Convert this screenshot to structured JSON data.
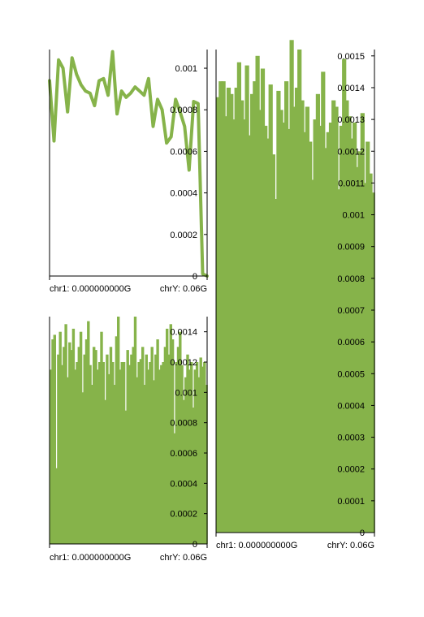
{
  "colors": {
    "series": "#86b34a",
    "axis": "#000000",
    "background": "#ffffff"
  },
  "chart_data": [
    {
      "type": "line",
      "title": "",
      "xlabel": "",
      "ylabel": "",
      "x_tick_labels": [
        "chr1: 0.000000000G",
        "chrY: 0.06G"
      ],
      "ylim": [
        0,
        0.00109
      ],
      "yticks": [
        0,
        0.0002,
        0.0004,
        0.0006,
        0.0008,
        0.001
      ],
      "ytick_labels": [
        "0",
        "0.0002",
        "0.0004",
        "0.0006",
        "0.0008",
        "0.001"
      ],
      "grid": false,
      "legend": "none",
      "values": [
        0.00094,
        0.00065,
        0.00104,
        0.001,
        0.00079,
        0.00105,
        0.00097,
        0.00092,
        0.00089,
        0.00088,
        0.00082,
        0.00094,
        0.00095,
        0.00087,
        0.00108,
        0.00078,
        0.00089,
        0.00086,
        0.00088,
        0.00091,
        0.00089,
        0.00087,
        0.00095,
        0.00072,
        0.00085,
        0.0008,
        0.00064,
        0.00067,
        0.00085,
        0.00079,
        0.00072,
        0.00051,
        0.00084,
        0.00083,
        1e-05,
        0.0
      ]
    },
    {
      "type": "bar",
      "title": "",
      "xlabel": "",
      "ylabel": "",
      "x_tick_labels": [
        "chr1: 0.000000000G",
        "chrY: 0.06G"
      ],
      "ylim": [
        0,
        0.0015
      ],
      "yticks": [
        0,
        0.0002,
        0.0004,
        0.0006,
        0.0008,
        0.001,
        0.0012,
        0.0014
      ],
      "ytick_labels": [
        "0",
        "0.0002",
        "0.0004",
        "0.0006",
        "0.0008",
        "0.001",
        "0.0012",
        "0.0014"
      ],
      "grid": false,
      "legend": "none",
      "values": [
        0.00115,
        0.00135,
        0.00138,
        0.0005,
        0.00125,
        0.0014,
        0.00118,
        0.0013,
        0.00145,
        0.0011,
        0.00133,
        0.00128,
        0.00142,
        0.00115,
        0.0012,
        0.0013,
        0.0014,
        0.001,
        0.00125,
        0.00135,
        0.00147,
        0.00118,
        0.00105,
        0.0013,
        0.00128,
        0.00115,
        0.0012,
        0.0014,
        0.0012,
        0.00095,
        0.00125,
        0.00112,
        0.0013,
        0.0012,
        0.00105,
        0.00137,
        0.0015,
        0.00115,
        0.0012,
        0.0012,
        0.00088,
        0.00128,
        0.00118,
        0.00125,
        0.0013,
        0.0015,
        0.0011,
        0.0012,
        0.00122,
        0.0013,
        0.00105,
        0.00125,
        0.00115,
        0.0012,
        0.0013,
        0.00108,
        0.00125,
        0.00135,
        0.00115,
        0.00118,
        0.0012,
        0.0013,
        0.00142,
        0.00125,
        0.00145,
        0.00135,
        0.00073,
        0.0012,
        0.0013,
        0.0014,
        0.00118,
        0.00095,
        0.0011,
        0.00125,
        0.00115,
        0.0012,
        0.0009,
        0.00115,
        0.0012,
        0.0011,
        0.00123,
        0.00117,
        0.0012,
        0.00105
      ]
    },
    {
      "type": "bar",
      "title": "",
      "xlabel": "",
      "ylabel": "",
      "x_tick_labels": [
        "chr1: 0.000000000G",
        "chrY: 0.06G"
      ],
      "ylim": [
        0,
        0.00152
      ],
      "yticks": [
        0,
        0.0001,
        0.0002,
        0.0003,
        0.0004,
        0.0005,
        0.0006,
        0.0007,
        0.0008,
        0.0009,
        0.001,
        0.0011,
        0.0012,
        0.0013,
        0.0014,
        0.0015
      ],
      "ytick_labels": [
        "0",
        "0.0001",
        "0.0002",
        "0.0003",
        "0.0004",
        "0.0005",
        "0.0006",
        "0.0007",
        "0.0008",
        "0.0009",
        "0.001",
        "0.0011",
        "0.0012",
        "0.0013",
        "0.0014",
        "0.0015"
      ],
      "grid": false,
      "legend": "none",
      "values": [
        0.00137,
        0.00142,
        0.00142,
        0.00131,
        0.0014,
        0.00138,
        0.0013,
        0.0014,
        0.00148,
        0.00136,
        0.0013,
        0.00147,
        0.00125,
        0.00138,
        0.00142,
        0.0015,
        0.00133,
        0.00146,
        0.00128,
        0.00124,
        0.00141,
        0.00119,
        0.00105,
        0.00139,
        0.00133,
        0.00129,
        0.00142,
        0.00127,
        0.00155,
        0.00134,
        0.0014,
        0.00152,
        0.00136,
        0.00126,
        0.00134,
        0.00123,
        0.00111,
        0.0013,
        0.00138,
        0.00128,
        0.00145,
        0.00121,
        0.00126,
        0.00129,
        0.00136,
        0.00134,
        0.00108,
        0.00128,
        0.00149,
        0.00136,
        0.00131,
        0.00124,
        0.00129,
        0.00115,
        0.0012,
        0.00132,
        0.0011,
        0.00123,
        0.00113,
        0.00107
      ]
    }
  ]
}
